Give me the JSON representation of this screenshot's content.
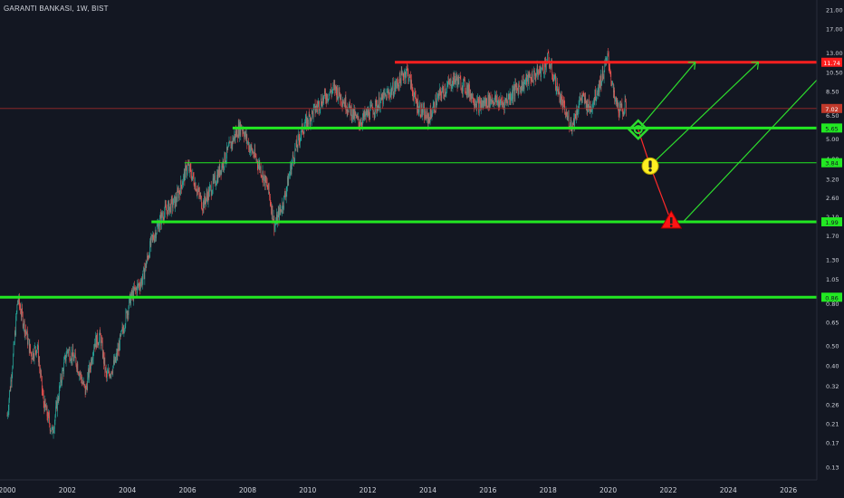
{
  "header": {
    "symbol": "GARANTI BANKASI",
    "interval": "1W",
    "exchange": "BIST",
    "sep1": ", ",
    "sep2": ", "
  },
  "colors": {
    "background": "#131722",
    "up_candle": "#26a69a",
    "down_candle": "#ef5350",
    "support_line": "#22e822",
    "resistance_line": "#ff1f1f",
    "projection_up": "#2ddd2d",
    "projection_down": "#ff2a2a",
    "warning_icon": "#ffee22",
    "danger_icon": "#ff1414"
  },
  "chart_data": {
    "type": "candlestick",
    "scale": "log",
    "ylim": [
      0.115,
      23.0
    ],
    "xlim": [
      2000.0,
      2028.0
    ],
    "x_ticks": [
      "2000",
      "2002",
      "2004",
      "2006",
      "2008",
      "2010",
      "2012",
      "2014",
      "2016",
      "2018",
      "2020",
      "2022",
      "2024",
      "2026"
    ],
    "y_ticks": [
      "21.00",
      "17.00",
      "13.00",
      "10.50",
      "8.50",
      "6.50",
      "5.00",
      "4.00",
      "3.20",
      "2.60",
      "2.10",
      "1.70",
      "1.30",
      "1.05",
      "0.80",
      "0.65",
      "0.50",
      "0.40",
      "0.32",
      "0.26",
      "0.21",
      "0.17",
      "0.13"
    ],
    "price_path": [
      [
        2000.0,
        0.23
      ],
      [
        2000.2,
        0.45
      ],
      [
        2000.35,
        0.85
      ],
      [
        2000.6,
        0.6
      ],
      [
        2000.8,
        0.45
      ],
      [
        2001.0,
        0.5
      ],
      [
        2001.2,
        0.27
      ],
      [
        2001.5,
        0.19
      ],
      [
        2001.8,
        0.35
      ],
      [
        2002.0,
        0.48
      ],
      [
        2002.3,
        0.42
      ],
      [
        2002.6,
        0.3
      ],
      [
        2002.9,
        0.52
      ],
      [
        2003.1,
        0.55
      ],
      [
        2003.3,
        0.35
      ],
      [
        2003.6,
        0.42
      ],
      [
        2003.9,
        0.65
      ],
      [
        2004.1,
        0.85
      ],
      [
        2004.5,
        1.05
      ],
      [
        2004.8,
        1.6
      ],
      [
        2005.2,
        2.2
      ],
      [
        2005.6,
        2.5
      ],
      [
        2006.0,
        3.7
      ],
      [
        2006.2,
        3.2
      ],
      [
        2006.5,
        2.4
      ],
      [
        2006.9,
        3.1
      ],
      [
        2007.2,
        3.9
      ],
      [
        2007.6,
        5.3
      ],
      [
        2007.8,
        5.8
      ],
      [
        2008.0,
        4.8
      ],
      [
        2008.4,
        3.7
      ],
      [
        2008.7,
        2.8
      ],
      [
        2008.9,
        1.9
      ],
      [
        2009.2,
        2.5
      ],
      [
        2009.5,
        4.0
      ],
      [
        2009.8,
        5.5
      ],
      [
        2010.2,
        6.8
      ],
      [
        2010.5,
        7.8
      ],
      [
        2010.9,
        8.8
      ],
      [
        2011.3,
        7.3
      ],
      [
        2011.7,
        6.0
      ],
      [
        2012.1,
        6.8
      ],
      [
        2012.5,
        7.8
      ],
      [
        2012.9,
        8.9
      ],
      [
        2013.3,
        10.8
      ],
      [
        2013.6,
        7.5
      ],
      [
        2014.0,
        6.2
      ],
      [
        2014.4,
        8.2
      ],
      [
        2014.9,
        9.8
      ],
      [
        2015.3,
        8.8
      ],
      [
        2015.7,
        7.2
      ],
      [
        2016.1,
        7.8
      ],
      [
        2016.5,
        7.4
      ],
      [
        2016.9,
        8.6
      ],
      [
        2017.3,
        9.6
      ],
      [
        2017.8,
        10.8
      ],
      [
        2018.0,
        12.2
      ],
      [
        2018.3,
        8.8
      ],
      [
        2018.6,
        6.5
      ],
      [
        2018.8,
        5.8
      ],
      [
        2019.1,
        8.0
      ],
      [
        2019.4,
        7.0
      ],
      [
        2019.8,
        10.0
      ],
      [
        2020.0,
        12.5
      ],
      [
        2020.2,
        7.8
      ],
      [
        2020.4,
        6.8
      ],
      [
        2020.6,
        7.2
      ]
    ],
    "levels": [
      {
        "label": "11.74",
        "value": 11.74,
        "color": "red"
      },
      {
        "label": "7.02",
        "value": 7.02,
        "color": "red-thin"
      },
      {
        "label": "5.65",
        "value": 5.65,
        "color": "green"
      },
      {
        "label": "3.84",
        "value": 3.84,
        "color": "green-thin"
      },
      {
        "label": "1.99",
        "value": 1.99,
        "color": "green"
      },
      {
        "label": "0.86",
        "value": 0.86,
        "color": "green"
      }
    ],
    "overlay_tick": {
      "label": "10.50"
    },
    "projections": {
      "down_path": [
        [
          2021.0,
          5.55
        ],
        [
          2021.4,
          3.7
        ],
        [
          2022.1,
          1.99
        ]
      ],
      "up_paths": [
        [
          [
            2021.0,
            5.55
          ],
          [
            2022.9,
            11.74
          ]
        ],
        [
          [
            2021.5,
            3.84
          ],
          [
            2025.0,
            11.74
          ]
        ],
        [
          [
            2022.5,
            1.99
          ],
          [
            2027.5,
            11.74
          ]
        ]
      ]
    }
  }
}
